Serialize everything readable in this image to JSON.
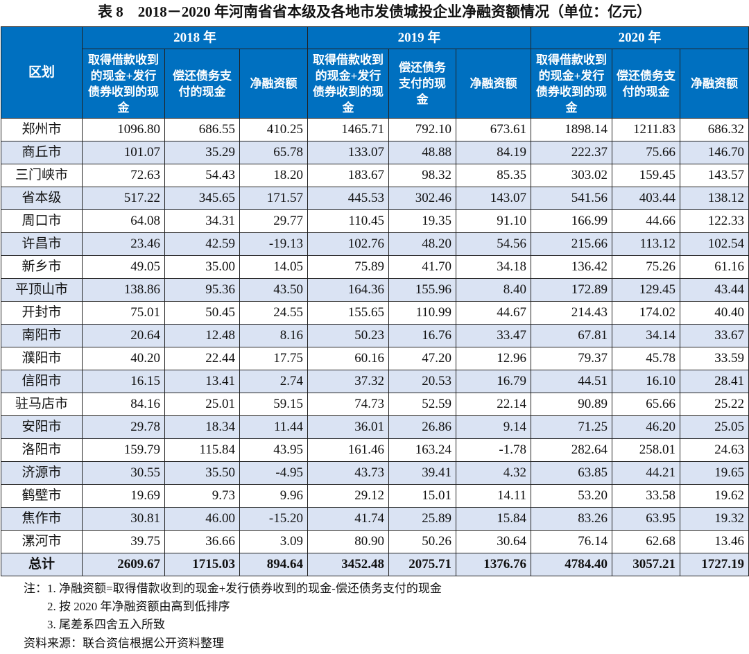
{
  "title": "表 8　2018－2020 年河南省省本级及各地市发债城投企业净融资额情况（单位：亿元）",
  "header": {
    "region": "区划",
    "years": [
      "2018 年",
      "2019 年",
      "2020 年"
    ],
    "sub_2018": [
      "取得借款收到的现金+发行债券收到的现金",
      "偿还债务支付的现金",
      "净融资额"
    ],
    "sub_2019": [
      "取得借款收到的现金+发行债券收到的现金",
      "偿还债务支付的现金",
      "净融资额"
    ],
    "sub_2020": [
      "取得借款收到的现金+发行债券收到的现金",
      "偿还债务支付的现金",
      "净融资额"
    ]
  },
  "colors": {
    "header_bg": "#0070c0",
    "alt_row_bg": "#dae3f3"
  },
  "rows": [
    [
      "郑州市",
      "1096.80",
      "686.55",
      "410.25",
      "1465.71",
      "792.10",
      "673.61",
      "1898.14",
      "1211.83",
      "686.32"
    ],
    [
      "商丘市",
      "101.07",
      "35.29",
      "65.78",
      "133.07",
      "48.88",
      "84.19",
      "222.37",
      "75.66",
      "146.70"
    ],
    [
      "三门峡市",
      "72.63",
      "54.43",
      "18.20",
      "183.67",
      "98.32",
      "85.35",
      "303.02",
      "159.45",
      "143.57"
    ],
    [
      "省本级",
      "517.22",
      "345.65",
      "171.57",
      "445.53",
      "302.46",
      "143.07",
      "541.56",
      "403.44",
      "138.12"
    ],
    [
      "周口市",
      "64.08",
      "34.31",
      "29.77",
      "110.45",
      "19.35",
      "91.10",
      "166.99",
      "44.66",
      "122.33"
    ],
    [
      "许昌市",
      "23.46",
      "42.59",
      "-19.13",
      "102.76",
      "48.20",
      "54.56",
      "215.66",
      "113.12",
      "102.54"
    ],
    [
      "新乡市",
      "49.05",
      "35.00",
      "14.05",
      "75.89",
      "41.70",
      "34.18",
      "136.42",
      "75.26",
      "61.16"
    ],
    [
      "平顶山市",
      "138.86",
      "95.36",
      "43.50",
      "164.36",
      "155.96",
      "8.40",
      "172.89",
      "129.45",
      "43.44"
    ],
    [
      "开封市",
      "75.01",
      "50.45",
      "24.55",
      "155.65",
      "110.99",
      "44.67",
      "214.43",
      "174.02",
      "40.40"
    ],
    [
      "南阳市",
      "20.64",
      "12.48",
      "8.16",
      "50.23",
      "16.76",
      "33.47",
      "67.81",
      "34.14",
      "33.67"
    ],
    [
      "濮阳市",
      "40.20",
      "22.44",
      "17.75",
      "60.16",
      "47.20",
      "12.96",
      "79.37",
      "45.78",
      "33.59"
    ],
    [
      "信阳市",
      "16.15",
      "13.41",
      "2.74",
      "37.32",
      "20.53",
      "16.79",
      "44.51",
      "16.10",
      "28.41"
    ],
    [
      "驻马店市",
      "84.16",
      "25.01",
      "59.15",
      "74.73",
      "52.59",
      "22.14",
      "90.89",
      "65.66",
      "25.22"
    ],
    [
      "安阳市",
      "29.78",
      "18.34",
      "11.44",
      "36.01",
      "26.86",
      "9.14",
      "71.25",
      "46.20",
      "25.05"
    ],
    [
      "洛阳市",
      "159.79",
      "115.84",
      "43.95",
      "161.46",
      "163.24",
      "-1.78",
      "282.64",
      "258.01",
      "24.63"
    ],
    [
      "济源市",
      "30.55",
      "35.50",
      "-4.95",
      "43.73",
      "39.41",
      "4.32",
      "63.85",
      "44.21",
      "19.65"
    ],
    [
      "鹤壁市",
      "19.69",
      "9.73",
      "9.96",
      "29.12",
      "15.01",
      "14.11",
      "53.20",
      "33.58",
      "19.62"
    ],
    [
      "焦作市",
      "30.81",
      "46.00",
      "-15.20",
      "41.74",
      "25.89",
      "15.84",
      "83.26",
      "63.95",
      "19.32"
    ],
    [
      "漯河市",
      "39.75",
      "36.66",
      "3.09",
      "80.90",
      "50.26",
      "30.64",
      "76.14",
      "62.68",
      "13.46"
    ]
  ],
  "total": [
    "总计",
    "2609.67",
    "1715.03",
    "894.64",
    "3452.48",
    "2075.71",
    "1376.76",
    "4784.40",
    "3057.21",
    "1727.19"
  ],
  "notes": [
    "注：1. 净融资额=取得借款收到的现金+发行债券收到的现金-偿还债务支付的现金",
    "2. 按 2020 年净融资额由高到低排序",
    "3. 尾差系四舍五入所致"
  ],
  "source": "资料来源：联合资信根据公开资料整理"
}
